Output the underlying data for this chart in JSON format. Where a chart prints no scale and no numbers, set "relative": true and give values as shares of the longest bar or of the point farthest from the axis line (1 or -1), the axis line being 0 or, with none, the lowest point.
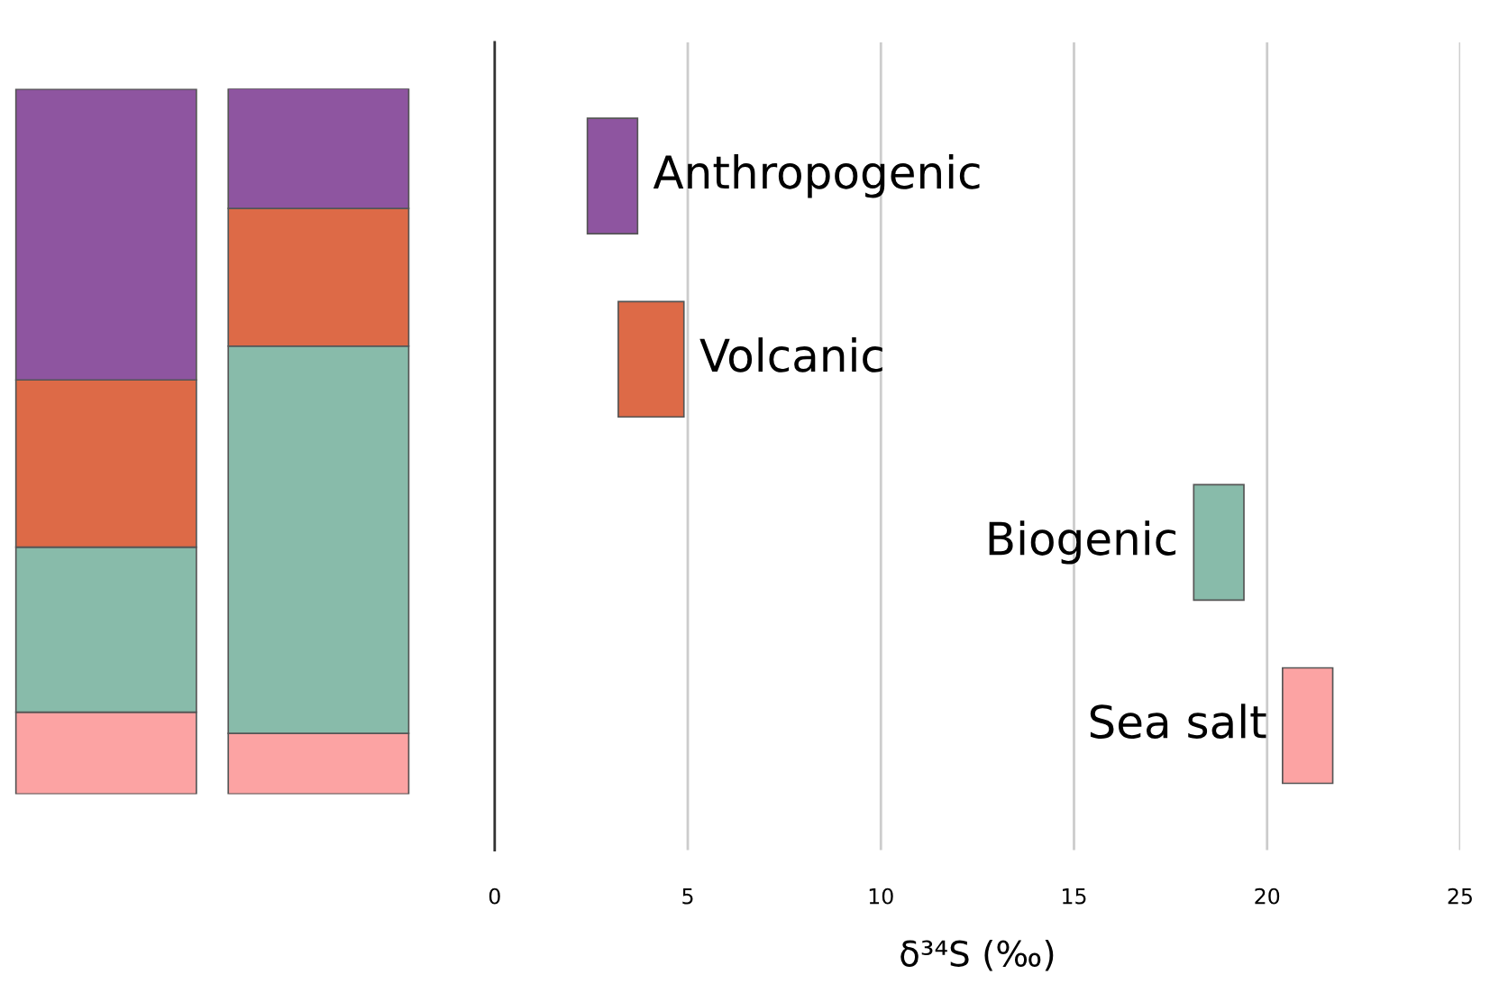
{
  "chart_data": [
    {
      "type": "bar",
      "stacked": true,
      "relative": true,
      "categories": [
        null,
        null
      ],
      "tick_labels": false,
      "series": [
        {
          "color": "#fca3a3",
          "values": [
            0.116,
            0.086
          ]
        },
        {
          "color": "#88bbaa",
          "values": [
            0.234,
            0.549
          ]
        },
        {
          "color": "#dd6a47",
          "values": [
            0.237,
            0.195
          ]
        },
        {
          "color": "#8e55a0",
          "values": [
            0.412,
            0.17
          ]
        }
      ]
    },
    {
      "type": "bar",
      "orientation": "horizontal",
      "categories": [
        "Anthropogenic",
        "Volcanic",
        "Biogenic",
        "Sea salt"
      ],
      "base": [
        2.4,
        3.2,
        18.1,
        20.4
      ],
      "values": [
        1.3,
        1.7,
        1.3,
        1.3
      ],
      "colors": [
        "#8e55a0",
        "#dd6a47",
        "#88bbaa",
        "#fca3a3"
      ],
      "xlim": [
        0,
        25
      ],
      "xticks": [
        0,
        5,
        10,
        15,
        20,
        25
      ],
      "xlabel": "δ³⁴S (‰)",
      "grid": "x",
      "tick_labels": "x"
    }
  ]
}
